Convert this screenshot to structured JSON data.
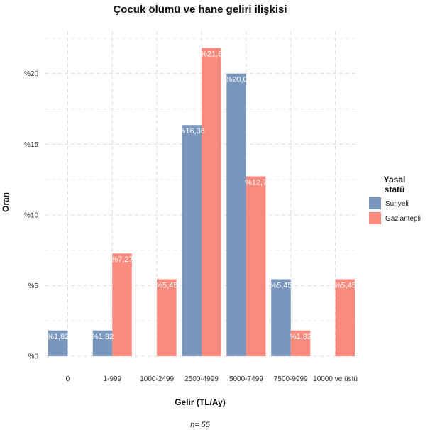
{
  "chart_data": {
    "type": "bar",
    "title": "Çocuk ölümü ve hane geliri ilişkisi",
    "xlabel": "Gelir (TL/Ay)",
    "ylabel": "Oran",
    "caption": "n=  55",
    "categories": [
      "0",
      "1-999",
      "1000-2499",
      "2500-4999",
      "5000-7499",
      "7500-9999",
      "10000 ve üstü"
    ],
    "ylim": [
      0,
      23
    ],
    "y_ticks": [
      {
        "value": 0,
        "label": "%0"
      },
      {
        "value": 5,
        "label": "%5"
      },
      {
        "value": 10,
        "label": "%10"
      },
      {
        "value": 15,
        "label": "%15"
      },
      {
        "value": 20,
        "label": "%20"
      }
    ],
    "legend": {
      "title_line1": "Yasal",
      "title_line2": "statü",
      "position": "right"
    },
    "grid": true,
    "series": [
      {
        "name": "Suriyeli",
        "color": "#7a96bd",
        "values": [
          1.82,
          1.82,
          0,
          16.36,
          20.0,
          5.45,
          0
        ],
        "labels": [
          "%1,82",
          "%1,82",
          "",
          "%16,36",
          "%20,0",
          "%5,45",
          ""
        ]
      },
      {
        "name": "Gaziantepli",
        "color": "#fa8a7e",
        "values": [
          0,
          7.27,
          5.45,
          21.82,
          12.73,
          1.82,
          5.45
        ],
        "labels": [
          "",
          "%7,27",
          "%5,45",
          "%21,8",
          "%12,7",
          "%1,82",
          "%5,45"
        ]
      }
    ]
  }
}
